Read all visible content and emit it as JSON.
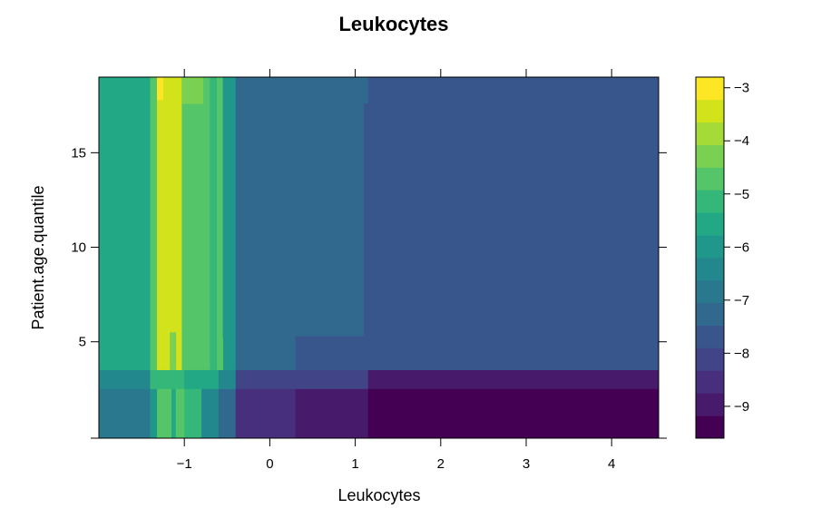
{
  "chart_data": {
    "type": "heatmap",
    "title": "Leukocytes",
    "xlabel": "Leukocytes",
    "ylabel": "Patient.age.quantile",
    "xlim": [
      -2.0,
      4.55
    ],
    "ylim": [
      -0.1,
      19.0
    ],
    "x_ticks": [
      -1,
      0,
      1,
      2,
      3,
      4
    ],
    "x_tick_labels": [
      "−1",
      "0",
      "1",
      "2",
      "3",
      "4"
    ],
    "y_ticks": [
      5,
      10,
      15
    ],
    "y_tick_labels": [
      "5",
      "10",
      "15"
    ],
    "colorbar": {
      "min": -9.6,
      "max": -2.8,
      "ticks": [
        -3,
        -4,
        -5,
        -6,
        -7,
        -8,
        -9
      ],
      "tick_labels": [
        "−3",
        "−4",
        "−5",
        "−6",
        "−7",
        "−8",
        "−9"
      ],
      "colors": [
        "#440154",
        "#481a6c",
        "#472f7d",
        "#414487",
        "#39568c",
        "#31688e",
        "#2a788e",
        "#23888e",
        "#1f988b",
        "#22a884",
        "#35b779",
        "#54c568",
        "#7ad151",
        "#a5db36",
        "#d2e21b",
        "#fde725"
      ]
    },
    "rects": [
      {
        "x0": -2.0,
        "x1": -1.4,
        "y0": 3.5,
        "y1": 19.0,
        "v": -5.5
      },
      {
        "x0": -1.4,
        "x1": -1.32,
        "y0": 3.5,
        "y1": 19.0,
        "v": -4.6
      },
      {
        "x0": -1.32,
        "x1": -1.25,
        "y0": 3.5,
        "y1": 19.0,
        "v": -3.5
      },
      {
        "x0": -1.25,
        "x1": -1.03,
        "y0": 3.5,
        "y1": 19.0,
        "v": -3.6
      },
      {
        "x0": -1.32,
        "x1": -1.25,
        "y0": 17.8,
        "y1": 19.0,
        "v": -2.9
      },
      {
        "x0": -1.03,
        "x1": -0.78,
        "y0": 3.5,
        "y1": 19.0,
        "v": -4.7
      },
      {
        "x0": -1.03,
        "x1": -0.78,
        "y0": 17.6,
        "y1": 19.0,
        "v": -4.4
      },
      {
        "x0": -0.78,
        "x1": -0.7,
        "y0": 3.5,
        "y1": 19.0,
        "v": -4.8
      },
      {
        "x0": -0.7,
        "x1": -0.62,
        "y0": 3.5,
        "y1": 19.0,
        "v": -5.2
      },
      {
        "x0": -0.62,
        "x1": -0.55,
        "y0": 3.5,
        "y1": 19.0,
        "v": -4.8
      },
      {
        "x0": -0.55,
        "x1": -0.4,
        "y0": 3.5,
        "y1": 19.0,
        "v": -5.8
      },
      {
        "x0": -1.17,
        "x1": -1.1,
        "y0": 3.5,
        "y1": 5.5,
        "v": -4.4
      },
      {
        "x0": -0.62,
        "x1": -0.55,
        "y0": 3.5,
        "y1": 5.2,
        "v": -4.9
      },
      {
        "x0": -0.4,
        "x1": 1.15,
        "y0": 5.3,
        "y1": 19.0,
        "v": -7.3
      },
      {
        "x0": 1.15,
        "x1": 4.55,
        "y0": 3.5,
        "y1": 17.6,
        "v": -7.8
      },
      {
        "x0": 1.1,
        "x1": 1.15,
        "y0": 5.3,
        "y1": 17.6,
        "v": -7.8
      },
      {
        "x0": 1.15,
        "x1": 4.55,
        "y0": 17.6,
        "y1": 19.0,
        "v": -7.8
      },
      {
        "x0": -0.4,
        "x1": 0.3,
        "y0": 3.5,
        "y1": 5.3,
        "v": -7.3
      },
      {
        "x0": 0.3,
        "x1": 1.15,
        "y0": 3.5,
        "y1": 5.3,
        "v": -7.7
      },
      {
        "x0": -2.0,
        "x1": -1.4,
        "y0": 2.5,
        "y1": 3.5,
        "v": -6.6
      },
      {
        "x0": -1.4,
        "x1": -1.0,
        "y0": 2.5,
        "y1": 3.5,
        "v": -5.0
      },
      {
        "x0": -1.0,
        "x1": -0.6,
        "y0": 2.5,
        "y1": 3.5,
        "v": -5.4
      },
      {
        "x0": -0.6,
        "x1": -0.4,
        "y0": 2.5,
        "y1": 3.5,
        "v": -6.2
      },
      {
        "x0": -0.4,
        "x1": 1.15,
        "y0": 2.5,
        "y1": 3.5,
        "v": -8.3
      },
      {
        "x0": 1.15,
        "x1": 4.55,
        "y0": 2.5,
        "y1": 3.5,
        "v": -8.8
      },
      {
        "x0": -2.0,
        "x1": -1.4,
        "y0": -0.1,
        "y1": 2.5,
        "v": -7.0
      },
      {
        "x0": -1.4,
        "x1": -1.32,
        "y0": -0.1,
        "y1": 2.5,
        "v": -6.0
      },
      {
        "x0": -1.32,
        "x1": -1.15,
        "y0": -0.1,
        "y1": 2.5,
        "v": -4.9
      },
      {
        "x0": -1.15,
        "x1": -1.1,
        "y0": -0.1,
        "y1": 2.5,
        "v": -5.6
      },
      {
        "x0": -1.1,
        "x1": -1.0,
        "y0": -0.1,
        "y1": 2.5,
        "v": -4.7
      },
      {
        "x0": -1.0,
        "x1": -0.8,
        "y0": -0.1,
        "y1": 2.5,
        "v": -5.3
      },
      {
        "x0": -0.8,
        "x1": -0.6,
        "y0": -0.1,
        "y1": 2.5,
        "v": -6.3
      },
      {
        "x0": -0.6,
        "x1": -0.4,
        "y0": -0.1,
        "y1": 2.5,
        "v": -7.4
      },
      {
        "x0": -0.4,
        "x1": 0.3,
        "y0": -0.1,
        "y1": 2.5,
        "v": -8.5
      },
      {
        "x0": 0.3,
        "x1": 1.15,
        "y0": -0.1,
        "y1": 2.5,
        "v": -9.1
      },
      {
        "x0": 1.15,
        "x1": 4.55,
        "y0": -0.1,
        "y1": 2.5,
        "v": -9.5
      }
    ]
  }
}
